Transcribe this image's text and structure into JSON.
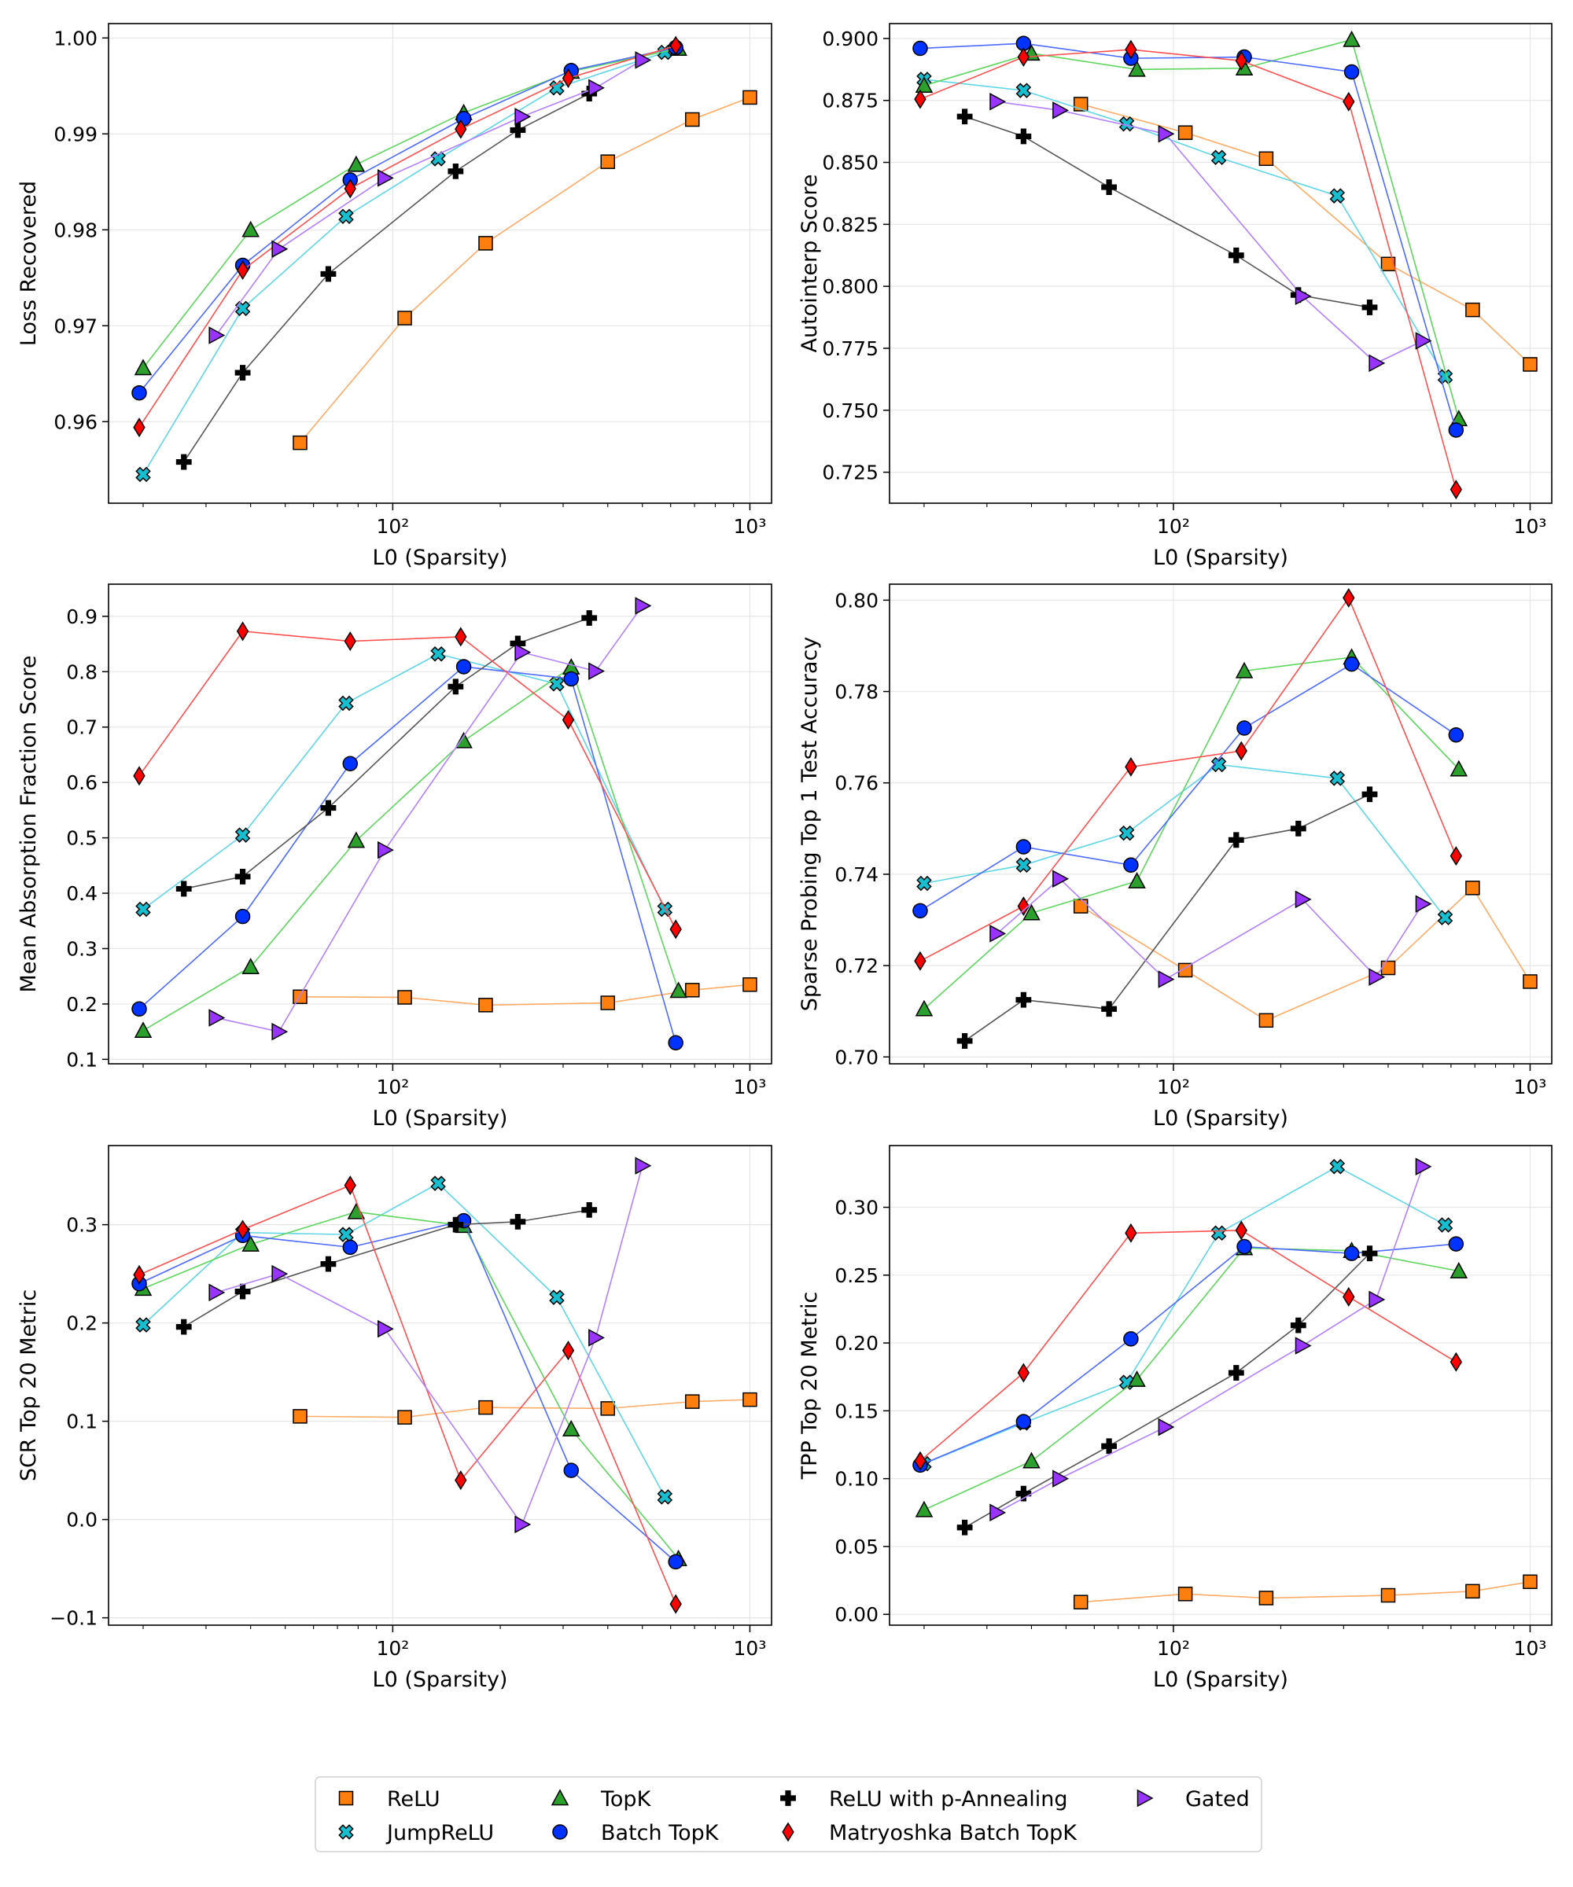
{
  "chart_data": [
    {
      "type": "line",
      "xscale": "log",
      "xlabel": "L0 (Sparsity)",
      "ylabel": "Loss Recovered",
      "xlim": [
        16,
        1150
      ],
      "ylim": [
        0.9515,
        1.0015
      ],
      "yticks": [
        0.96,
        0.97,
        0.98,
        0.99,
        1.0
      ],
      "ytick_labels": [
        "0.96",
        "0.97",
        "0.98",
        "0.99",
        "1.00"
      ],
      "xticks": [
        100,
        1000
      ],
      "xtick_labels": [
        "10²",
        "10³"
      ],
      "grid": true,
      "series": [
        {
          "name": "ReLU",
          "x": [
            55,
            108,
            182,
            400,
            690,
            1000
          ],
          "y": [
            0.9578,
            0.9708,
            0.9786,
            0.9871,
            0.9915,
            0.9938
          ]
        },
        {
          "name": "JumpReLU",
          "x": [
            20,
            38,
            74,
            134,
            288,
            578
          ],
          "y": [
            0.9545,
            0.9718,
            0.9814,
            0.9874,
            0.9948,
            0.9985
          ]
        },
        {
          "name": "TopK",
          "x": [
            20,
            40,
            79,
            158,
            316,
            631
          ],
          "y": [
            0.9656,
            0.98,
            0.9868,
            0.9922,
            0.9965,
            0.9989
          ]
        },
        {
          "name": "Batch TopK",
          "x": [
            19.5,
            38,
            76,
            158,
            316,
            620
          ],
          "y": [
            0.963,
            0.9763,
            0.9852,
            0.9916,
            0.9966,
            0.999
          ]
        },
        {
          "name": "ReLU with p-Annealing",
          "x": [
            26,
            38,
            66,
            150,
            224,
            355
          ],
          "y": [
            0.9558,
            0.9651,
            0.9754,
            0.9861,
            0.9904,
            0.9942
          ]
        },
        {
          "name": "Matryoshka Batch TopK",
          "x": [
            19.5,
            38,
            76,
            155,
            310,
            620
          ],
          "y": [
            0.9594,
            0.9758,
            0.9843,
            0.9905,
            0.9958,
            0.9992
          ]
        },
        {
          "name": "Gated",
          "x": [
            32,
            48,
            95,
            230,
            370,
            500
          ],
          "y": [
            0.969,
            0.978,
            0.9854,
            0.9918,
            0.9948,
            0.9977
          ]
        }
      ]
    },
    {
      "type": "line",
      "xscale": "log",
      "xlabel": "L0 (Sparsity)",
      "ylabel": "Autointerp Score",
      "xlim": [
        16,
        1150
      ],
      "ylim": [
        0.7125,
        0.906
      ],
      "yticks": [
        0.725,
        0.75,
        0.775,
        0.8,
        0.825,
        0.85,
        0.875,
        0.9
      ],
      "ytick_labels": [
        "0.725",
        "0.750",
        "0.775",
        "0.800",
        "0.825",
        "0.850",
        "0.875",
        "0.900"
      ],
      "xticks": [
        100,
        1000
      ],
      "xtick_labels": [
        "10²",
        "10³"
      ],
      "grid": true,
      "series": [
        {
          "name": "ReLU",
          "x": [
            55,
            108,
            182,
            400,
            690,
            1000
          ],
          "y": [
            0.8735,
            0.862,
            0.8515,
            0.809,
            0.7905,
            0.7685
          ]
        },
        {
          "name": "JumpReLU",
          "x": [
            20,
            38,
            74,
            134,
            288,
            578
          ],
          "y": [
            0.8835,
            0.879,
            0.8655,
            0.852,
            0.8365,
            0.7635
          ]
        },
        {
          "name": "TopK",
          "x": [
            20,
            40,
            79,
            158,
            316,
            631
          ],
          "y": [
            0.881,
            0.894,
            0.8875,
            0.888,
            0.8995,
            0.7465
          ]
        },
        {
          "name": "Batch TopK",
          "x": [
            19.5,
            38,
            76,
            158,
            316,
            620
          ],
          "y": [
            0.896,
            0.898,
            0.892,
            0.8925,
            0.8865,
            0.742
          ]
        },
        {
          "name": "ReLU with p-Annealing",
          "x": [
            26,
            38,
            66,
            150,
            224,
            355
          ],
          "y": [
            0.8685,
            0.8605,
            0.84,
            0.8125,
            0.7965,
            0.7915
          ]
        },
        {
          "name": "Matryoshka Batch TopK",
          "x": [
            19.5,
            38,
            76,
            155,
            310,
            620
          ],
          "y": [
            0.8755,
            0.8925,
            0.8955,
            0.891,
            0.8745,
            0.718
          ]
        },
        {
          "name": "Gated",
          "x": [
            32,
            48,
            95,
            230,
            370,
            500
          ],
          "y": [
            0.8745,
            0.871,
            0.8615,
            0.796,
            0.769,
            0.778
          ]
        }
      ]
    },
    {
      "type": "line",
      "xscale": "log",
      "xlabel": "L0 (Sparsity)",
      "ylabel": "Mean Absorption Fraction Score",
      "xlim": [
        16,
        1150
      ],
      "ylim": [
        0.092,
        0.958
      ],
      "yticks": [
        0.1,
        0.2,
        0.3,
        0.4,
        0.5,
        0.6,
        0.7,
        0.8,
        0.9
      ],
      "ytick_labels": [
        "0.1",
        "0.2",
        "0.3",
        "0.4",
        "0.5",
        "0.6",
        "0.7",
        "0.8",
        "0.9"
      ],
      "xticks": [
        100,
        1000
      ],
      "xtick_labels": [
        "10²",
        "10³"
      ],
      "grid": true,
      "series": [
        {
          "name": "ReLU",
          "x": [
            55,
            108,
            182,
            400,
            690,
            1000
          ],
          "y": [
            0.213,
            0.212,
            0.198,
            0.202,
            0.225,
            0.235
          ]
        },
        {
          "name": "JumpReLU",
          "x": [
            20,
            38,
            74,
            134,
            288,
            578
          ],
          "y": [
            0.371,
            0.505,
            0.743,
            0.832,
            0.778,
            0.371
          ]
        },
        {
          "name": "TopK",
          "x": [
            20,
            40,
            79,
            158,
            316,
            631
          ],
          "y": [
            0.152,
            0.267,
            0.495,
            0.675,
            0.808,
            0.224
          ]
        },
        {
          "name": "Batch TopK",
          "x": [
            19.5,
            38,
            76,
            158,
            316,
            620
          ],
          "y": [
            0.191,
            0.358,
            0.634,
            0.809,
            0.787,
            0.13
          ]
        },
        {
          "name": "ReLU with p-Annealing",
          "x": [
            26,
            38,
            66,
            150,
            224,
            355
          ],
          "y": [
            0.408,
            0.43,
            0.554,
            0.773,
            0.851,
            0.897
          ]
        },
        {
          "name": "Matryoshka Batch TopK",
          "x": [
            19.5,
            38,
            76,
            155,
            310,
            620
          ],
          "y": [
            0.612,
            0.873,
            0.855,
            0.863,
            0.713,
            0.335
          ]
        },
        {
          "name": "Gated",
          "x": [
            32,
            48,
            95,
            230,
            370,
            500
          ],
          "y": [
            0.175,
            0.15,
            0.478,
            0.835,
            0.801,
            0.919
          ]
        }
      ]
    },
    {
      "type": "line",
      "xscale": "log",
      "xlabel": "L0 (Sparsity)",
      "ylabel": "Sparse Probing Top 1 Test Accuracy",
      "xlim": [
        16,
        1150
      ],
      "ylim": [
        0.6985,
        0.8035
      ],
      "yticks": [
        0.7,
        0.72,
        0.74,
        0.76,
        0.78,
        0.8
      ],
      "ytick_labels": [
        "0.70",
        "0.72",
        "0.74",
        "0.76",
        "0.78",
        "0.80"
      ],
      "xticks": [
        100,
        1000
      ],
      "xtick_labels": [
        "10²",
        "10³"
      ],
      "grid": true,
      "series": [
        {
          "name": "ReLU",
          "x": [
            55,
            108,
            182,
            400,
            690,
            1000
          ],
          "y": [
            0.733,
            0.719,
            0.708,
            0.7195,
            0.737,
            0.7165
          ]
        },
        {
          "name": "JumpReLU",
          "x": [
            20,
            38,
            74,
            134,
            288,
            578
          ],
          "y": [
            0.738,
            0.742,
            0.749,
            0.764,
            0.761,
            0.7305
          ]
        },
        {
          "name": "TopK",
          "x": [
            20,
            40,
            79,
            158,
            316,
            631
          ],
          "y": [
            0.7105,
            0.7315,
            0.7385,
            0.7845,
            0.7875,
            0.763
          ]
        },
        {
          "name": "Batch TopK",
          "x": [
            19.5,
            38,
            76,
            158,
            316,
            620
          ],
          "y": [
            0.732,
            0.746,
            0.742,
            0.772,
            0.786,
            0.7705
          ]
        },
        {
          "name": "ReLU with p-Annealing",
          "x": [
            26,
            38,
            66,
            150,
            224,
            355
          ],
          "y": [
            0.7035,
            0.7125,
            0.7105,
            0.7475,
            0.75,
            0.7575
          ]
        },
        {
          "name": "Matryoshka Batch TopK",
          "x": [
            19.5,
            38,
            76,
            155,
            310,
            620
          ],
          "y": [
            0.721,
            0.733,
            0.7635,
            0.767,
            0.8005,
            0.744
          ]
        },
        {
          "name": "Gated",
          "x": [
            32,
            48,
            95,
            230,
            370,
            500
          ],
          "y": [
            0.727,
            0.739,
            0.717,
            0.7345,
            0.7175,
            0.7335
          ]
        }
      ]
    },
    {
      "type": "line",
      "xscale": "log",
      "xlabel": "L0 (Sparsity)",
      "ylabel": "SCR Top 20 Metric",
      "xlim": [
        16,
        1150
      ],
      "ylim": [
        -0.1075,
        0.3805
      ],
      "yticks": [
        -0.1,
        0.0,
        0.1,
        0.2,
        0.3
      ],
      "ytick_labels": [
        "−0.1",
        "0.0",
        "0.1",
        "0.2",
        "0.3"
      ],
      "xticks": [
        100,
        1000
      ],
      "xtick_labels": [
        "10²",
        "10³"
      ],
      "grid": true,
      "series": [
        {
          "name": "ReLU",
          "x": [
            55,
            108,
            182,
            400,
            690,
            1000
          ],
          "y": [
            0.105,
            0.104,
            0.114,
            0.113,
            0.12,
            0.122
          ]
        },
        {
          "name": "JumpReLU",
          "x": [
            20,
            38,
            74,
            134,
            288,
            578
          ],
          "y": [
            0.198,
            0.292,
            0.29,
            0.342,
            0.226,
            0.023
          ]
        },
        {
          "name": "TopK",
          "x": [
            20,
            40,
            79,
            158,
            316,
            631
          ],
          "y": [
            0.235,
            0.28,
            0.313,
            0.299,
            0.092,
            -0.04
          ]
        },
        {
          "name": "Batch TopK",
          "x": [
            19.5,
            38,
            76,
            158,
            316,
            620
          ],
          "y": [
            0.24,
            0.289,
            0.277,
            0.304,
            0.05,
            -0.043
          ]
        },
        {
          "name": "ReLU with p-Annealing",
          "x": [
            26,
            38,
            66,
            150,
            224,
            355
          ],
          "y": [
            0.196,
            0.232,
            0.26,
            0.3,
            0.303,
            0.315
          ]
        },
        {
          "name": "Matryoshka Batch TopK",
          "x": [
            19.5,
            38,
            76,
            155,
            310,
            620
          ],
          "y": [
            0.249,
            0.295,
            0.34,
            0.04,
            0.172,
            -0.086
          ]
        },
        {
          "name": "Gated",
          "x": [
            32,
            48,
            95,
            230,
            370,
            500
          ],
          "y": [
            0.231,
            0.25,
            0.194,
            -0.005,
            0.185,
            0.36
          ]
        }
      ]
    },
    {
      "type": "line",
      "xscale": "log",
      "xlabel": "L0 (Sparsity)",
      "ylabel": "TPP Top 20 Metric",
      "xlim": [
        16,
        1150
      ],
      "ylim": [
        -0.008,
        0.3455
      ],
      "yticks": [
        0.0,
        0.05,
        0.1,
        0.15,
        0.2,
        0.25,
        0.3
      ],
      "ytick_labels": [
        "0.00",
        "0.05",
        "0.10",
        "0.15",
        "0.20",
        "0.25",
        "0.30"
      ],
      "xticks": [
        100,
        1000
      ],
      "xtick_labels": [
        "10²",
        "10³"
      ],
      "grid": true,
      "series": [
        {
          "name": "ReLU",
          "x": [
            55,
            108,
            182,
            400,
            690,
            1000
          ],
          "y": [
            0.009,
            0.015,
            0.012,
            0.014,
            0.017,
            0.024
          ]
        },
        {
          "name": "JumpReLU",
          "x": [
            20,
            38,
            74,
            134,
            288,
            578
          ],
          "y": [
            0.111,
            0.141,
            0.171,
            0.281,
            0.33,
            0.287
          ]
        },
        {
          "name": "TopK",
          "x": [
            20,
            40,
            79,
            158,
            316,
            631
          ],
          "y": [
            0.077,
            0.113,
            0.173,
            0.27,
            0.268,
            0.253
          ]
        },
        {
          "name": "Batch TopK",
          "x": [
            19.5,
            38,
            76,
            158,
            316,
            620
          ],
          "y": [
            0.11,
            0.142,
            0.203,
            0.271,
            0.266,
            0.273
          ]
        },
        {
          "name": "ReLU with p-Annealing",
          "x": [
            26,
            38,
            66,
            150,
            224,
            355
          ],
          "y": [
            0.064,
            0.089,
            0.124,
            0.178,
            0.213,
            0.266
          ]
        },
        {
          "name": "Matryoshka Batch TopK",
          "x": [
            19.5,
            38,
            76,
            155,
            310,
            620
          ],
          "y": [
            0.113,
            0.178,
            0.281,
            0.283,
            0.234,
            0.186
          ]
        },
        {
          "name": "Gated",
          "x": [
            32,
            48,
            95,
            230,
            370,
            500
          ],
          "y": [
            0.075,
            0.1,
            0.138,
            0.198,
            0.232,
            0.33
          ]
        }
      ]
    }
  ],
  "legend": {
    "placement": "bottom-center",
    "entries": [
      {
        "name": "ReLU",
        "marker": "square",
        "color": "#ff7f0e"
      },
      {
        "name": "JumpReLU",
        "marker": "x",
        "color": "#17becf"
      },
      {
        "name": "TopK",
        "marker": "triangle",
        "color": "#2ca02c"
      },
      {
        "name": "Batch TopK",
        "marker": "circle",
        "color": "#0033ff"
      },
      {
        "name": "ReLU with p-Annealing",
        "marker": "plus",
        "color": "#000000"
      },
      {
        "name": "Matryoshka Batch TopK",
        "marker": "diamond",
        "color": "#ff0000"
      },
      {
        "name": "Gated",
        "marker": "triangle-right",
        "color": "#9933ff"
      }
    ]
  },
  "style": {
    "line_colors": {
      "ReLU": "#ffab66",
      "JumpReLU": "#5fd6e6",
      "TopK": "#5ed65e",
      "Batch TopK": "#4d6bff",
      "ReLU with p-Annealing": "#555555",
      "Matryoshka Batch TopK": "#ff5050",
      "Gated": "#b380ff"
    },
    "marker_edge": "#000000",
    "grid_color": "#e6e6e6"
  }
}
